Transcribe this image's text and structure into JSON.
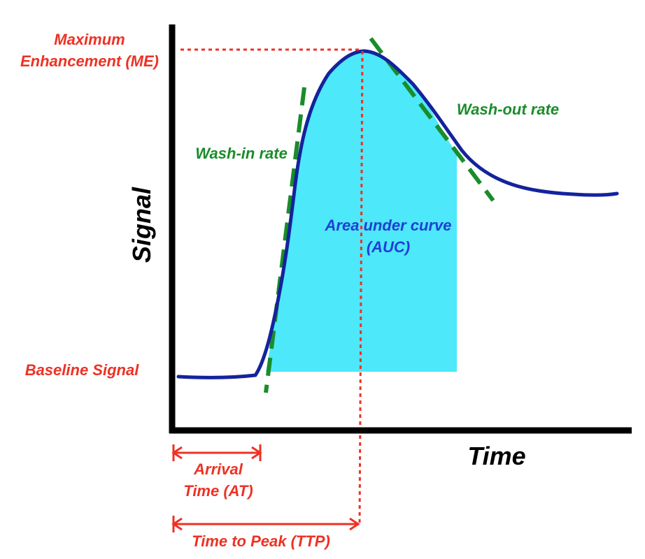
{
  "labels": {
    "max_enhancement_line1": "Maximum",
    "max_enhancement_line2": "Enhancement (ME)",
    "baseline_signal": "Baseline Signal",
    "wash_in_rate": "Wash-in rate",
    "wash_out_rate": "Wash-out rate",
    "auc_line1": "Area under curve",
    "auc_line2": "(AUC)",
    "arrival_time_line1": "Arrival",
    "arrival_time_line2": "Time (AT)",
    "time_to_peak": "Time to Peak (TTP)"
  },
  "axes": {
    "x_label": "Time",
    "y_label": "Signal"
  },
  "colors": {
    "curve": "#14239c",
    "auc_fill": "#4de8f9",
    "annotation_red": "#ee3124",
    "tangent_green": "#1a8c2a",
    "axis": "#000000"
  }
}
